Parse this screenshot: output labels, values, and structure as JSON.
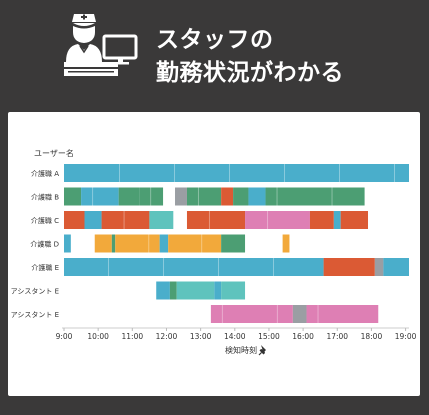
{
  "header": {
    "title_line1": "スタッフの",
    "title_line2": "勤務状況がわかる",
    "icon": "nurse-at-computer-icon"
  },
  "colors": {
    "background": "#3a3939",
    "card": "#ffffff",
    "blue": "#4aaecb",
    "green": "#4c9e73",
    "orange": "#db5a34",
    "yellow": "#f2a93b",
    "pink": "#de7fb4",
    "teal": "#5fc3bd",
    "gray": "#9a9ea3"
  },
  "chart_data": {
    "type": "timeline",
    "ylabel": "ユーザー名",
    "xlabel": "検知時刻",
    "xlabel_icon": "pin-icon",
    "xlim": [
      9.0,
      19.1
    ],
    "ticks": [
      "9:00",
      "10:00",
      "11:00",
      "12:00",
      "13:00",
      "14:00",
      "15:00",
      "16:00",
      "17:00",
      "18:00",
      "19:00"
    ],
    "rows": [
      {
        "name": "介護職 A",
        "segments": [
          {
            "start": 9.0,
            "end": 19.1,
            "color": "blue"
          }
        ]
      },
      {
        "name": "介護職 B",
        "segments": [
          {
            "start": 9.0,
            "end": 9.5,
            "color": "green"
          },
          {
            "start": 9.5,
            "end": 10.6,
            "color": "blue"
          },
          {
            "start": 10.6,
            "end": 11.2,
            "color": "green"
          },
          {
            "start": 11.2,
            "end": 11.9,
            "color": "green"
          },
          {
            "start": 12.25,
            "end": 12.6,
            "color": "gray"
          },
          {
            "start": 12.6,
            "end": 13.6,
            "color": "green"
          },
          {
            "start": 13.6,
            "end": 13.95,
            "color": "orange"
          },
          {
            "start": 13.95,
            "end": 14.4,
            "color": "green"
          },
          {
            "start": 14.4,
            "end": 14.9,
            "color": "blue"
          },
          {
            "start": 14.9,
            "end": 17.8,
            "color": "green"
          }
        ]
      },
      {
        "name": "介護職 C",
        "segments": [
          {
            "start": 9.0,
            "end": 9.6,
            "color": "orange"
          },
          {
            "start": 9.6,
            "end": 10.1,
            "color": "blue"
          },
          {
            "start": 10.1,
            "end": 11.5,
            "color": "orange"
          },
          {
            "start": 11.5,
            "end": 12.2,
            "color": "teal"
          },
          {
            "start": 12.6,
            "end": 14.3,
            "color": "orange"
          },
          {
            "start": 14.3,
            "end": 16.2,
            "color": "pink"
          },
          {
            "start": 16.2,
            "end": 16.9,
            "color": "orange"
          },
          {
            "start": 16.9,
            "end": 17.1,
            "color": "blue"
          },
          {
            "start": 17.1,
            "end": 17.9,
            "color": "orange"
          }
        ]
      },
      {
        "name": "介護職 D",
        "segments": [
          {
            "start": 9.0,
            "end": 9.2,
            "color": "blue"
          },
          {
            "start": 9.9,
            "end": 10.4,
            "color": "yellow"
          },
          {
            "start": 10.4,
            "end": 10.5,
            "color": "green"
          },
          {
            "start": 10.5,
            "end": 11.8,
            "color": "yellow"
          },
          {
            "start": 11.8,
            "end": 12.05,
            "color": "blue"
          },
          {
            "start": 12.05,
            "end": 13.6,
            "color": "yellow"
          },
          {
            "start": 13.6,
            "end": 14.3,
            "color": "green"
          },
          {
            "start": 15.4,
            "end": 15.6,
            "color": "yellow"
          }
        ]
      },
      {
        "name": "介護職 E",
        "segments": [
          {
            "start": 9.0,
            "end": 16.6,
            "color": "blue"
          },
          {
            "start": 16.6,
            "end": 18.1,
            "color": "orange"
          },
          {
            "start": 18.1,
            "end": 18.35,
            "color": "gray"
          },
          {
            "start": 18.35,
            "end": 19.1,
            "color": "blue"
          }
        ]
      },
      {
        "name": "アシスタント E",
        "segments": [
          {
            "start": 11.7,
            "end": 12.1,
            "color": "blue"
          },
          {
            "start": 12.1,
            "end": 12.3,
            "color": "green"
          },
          {
            "start": 12.3,
            "end": 13.4,
            "color": "teal"
          },
          {
            "start": 13.4,
            "end": 13.6,
            "color": "blue"
          },
          {
            "start": 13.6,
            "end": 14.3,
            "color": "teal"
          }
        ]
      },
      {
        "name": "アシスタント E",
        "segments": [
          {
            "start": 13.3,
            "end": 15.7,
            "color": "pink"
          },
          {
            "start": 15.7,
            "end": 16.1,
            "color": "gray"
          },
          {
            "start": 16.1,
            "end": 18.2,
            "color": "pink"
          }
        ]
      }
    ]
  }
}
